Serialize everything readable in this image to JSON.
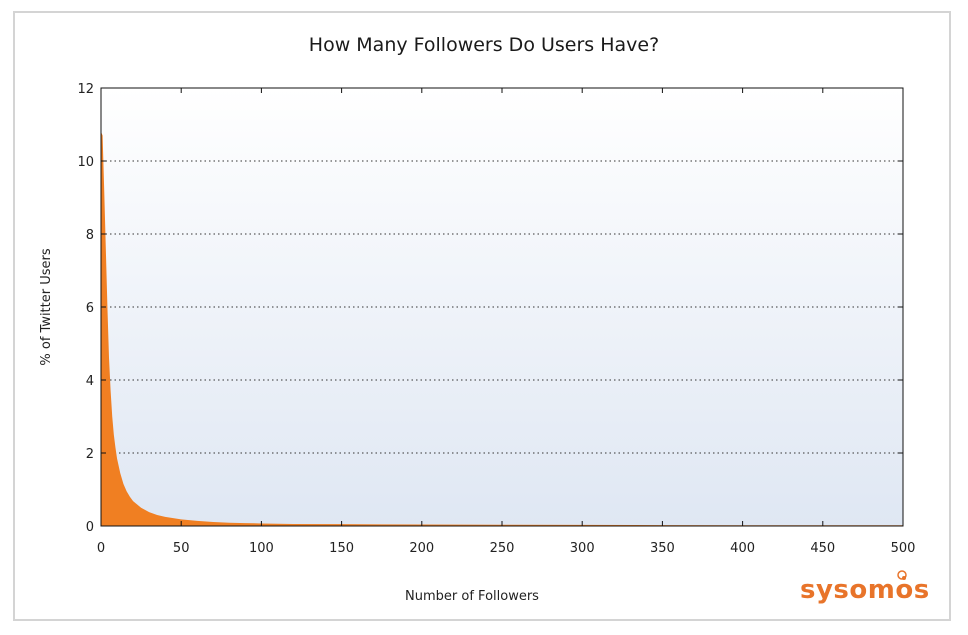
{
  "chart_data": {
    "type": "area",
    "title": "How Many Followers Do Users Have?",
    "xlabel": "Number of Followers",
    "ylabel": "% of Twitter Users",
    "xlim": [
      0,
      500
    ],
    "ylim": [
      0,
      12
    ],
    "x_ticks": [
      0,
      50,
      100,
      150,
      200,
      250,
      300,
      350,
      400,
      450,
      500
    ],
    "y_ticks": [
      0,
      2,
      4,
      6,
      8,
      10,
      12
    ],
    "grid": "horizontal-dotted",
    "series": [
      {
        "color": "#f07f22",
        "x": [
          0,
          1,
          2,
          3,
          4,
          5,
          6,
          7,
          8,
          9,
          10,
          12,
          14,
          16,
          18,
          20,
          25,
          30,
          35,
          40,
          50,
          60,
          70,
          80,
          90,
          100,
          110,
          120,
          150,
          200,
          250,
          300,
          350,
          400,
          450,
          500
        ],
        "y": [
          10.8,
          10.7,
          9.2,
          7.6,
          6.0,
          4.6,
          3.7,
          3.0,
          2.5,
          2.15,
          1.85,
          1.45,
          1.15,
          0.95,
          0.8,
          0.68,
          0.5,
          0.38,
          0.3,
          0.25,
          0.18,
          0.14,
          0.11,
          0.09,
          0.08,
          0.07,
          0.06,
          0.055,
          0.05,
          0.04,
          0.035,
          0.03,
          0.025,
          0.02,
          0.02,
          0.02
        ]
      }
    ]
  },
  "brand": {
    "name": "sysomos",
    "color": "#e8742a"
  }
}
